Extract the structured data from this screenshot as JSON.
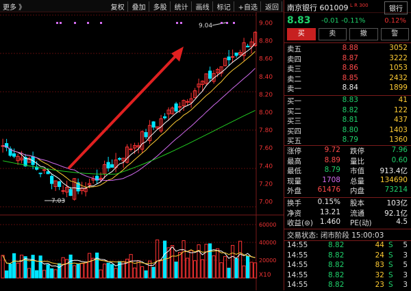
{
  "toolbar": {
    "more": "更多 》",
    "items": [
      "复权",
      "叠加",
      "多股",
      "统计",
      "画线",
      "标记",
      "+自选",
      "返回"
    ]
  },
  "stock": {
    "name": "南京银行 601009",
    "badge": "L R 300",
    "sector_button": "银行",
    "price": "8.83",
    "change": "-0.01",
    "change_pct": "-0.11%",
    "sector_pct": "0.12%"
  },
  "actions": [
    "买",
    "卖",
    "撤",
    "警"
  ],
  "asks": [
    {
      "label": "卖五",
      "price": "8.88",
      "vol": "3052"
    },
    {
      "label": "卖四",
      "price": "8.87",
      "vol": "3222"
    },
    {
      "label": "卖三",
      "price": "8.86",
      "vol": "1053"
    },
    {
      "label": "卖二",
      "price": "8.85",
      "vol": "2432"
    },
    {
      "label": "卖一",
      "price": "8.84",
      "vol": "1899"
    }
  ],
  "bids": [
    {
      "label": "买一",
      "price": "8.83",
      "vol": "41"
    },
    {
      "label": "买二",
      "price": "8.82",
      "vol": "122"
    },
    {
      "label": "买三",
      "price": "8.81",
      "vol": "437"
    },
    {
      "label": "买四",
      "price": "8.80",
      "vol": "1403"
    },
    {
      "label": "买五",
      "price": "8.79",
      "vol": "1360"
    }
  ],
  "stats": [
    {
      "l1": "涨停",
      "v1": "9.72",
      "c1": "red",
      "l2": "跌停",
      "v2": "7.96",
      "c2": "green"
    },
    {
      "l1": "最高",
      "v1": "8.89",
      "c1": "red",
      "l2": "量比",
      "v2": "0.60",
      "c2": "green"
    },
    {
      "l1": "最低",
      "v1": "8.79",
      "c1": "green",
      "l2": "市值",
      "v2": "913.4亿",
      "c2": "white"
    },
    {
      "l1": "现量",
      "v1": "1708",
      "c1": "purple",
      "l2": "总量",
      "v2": "134690",
      "c2": "yellow"
    },
    {
      "l1": "外盘",
      "v1": "61476",
      "c1": "red",
      "l2": "内盘",
      "v2": "73214",
      "c2": "green"
    }
  ],
  "stats2": [
    {
      "l1": "换手",
      "v1": "0.15%",
      "c1": "white",
      "l2": "股本",
      "v2": "103亿",
      "c2": "white"
    },
    {
      "l1": "净资",
      "v1": "13.21",
      "c1": "white",
      "l2": "流通",
      "v2": "92.1亿",
      "c2": "white"
    },
    {
      "l1": "收益(⊜)",
      "v1": "1.460",
      "c1": "white",
      "l2": "PE(动)",
      "v2": "4.5",
      "c2": "white"
    }
  ],
  "status": "交易状态: 闭市阶段 15:00:03",
  "trades": [
    {
      "t": "14:55",
      "p": "8.82",
      "v": "44",
      "s": "S",
      "n": "5"
    },
    {
      "t": "14:55",
      "p": "8.82",
      "v": "24",
      "s": "S",
      "n": "3"
    },
    {
      "t": "14:55",
      "p": "8.82",
      "v": "83",
      "s": "S",
      "n": "5"
    },
    {
      "t": "14:55",
      "p": "8.82",
      "v": "32",
      "s": "S",
      "n": "3"
    },
    {
      "t": "14:55",
      "p": "8.82",
      "v": "23",
      "s": "S",
      "n": "3"
    }
  ],
  "chart": {
    "price_axis": [
      "9.00",
      "8.80",
      "8.60",
      "8.40",
      "8.20",
      "8.00",
      "7.80",
      "7.60",
      "7.40",
      "7.20",
      "7.00"
    ],
    "vol_axis": [
      "60000",
      "40000",
      "20000"
    ],
    "vol_unit": "X10",
    "high_label": "9.04",
    "low_label": "7.03",
    "colors": {
      "up": "#ff3333",
      "down": "#00e5ff",
      "ma5": "#ffffff",
      "ma10": "#ffcc33",
      "ma20": "#d36cf0",
      "ma60": "#22cc22",
      "grid": "#5a0d0d"
    }
  }
}
